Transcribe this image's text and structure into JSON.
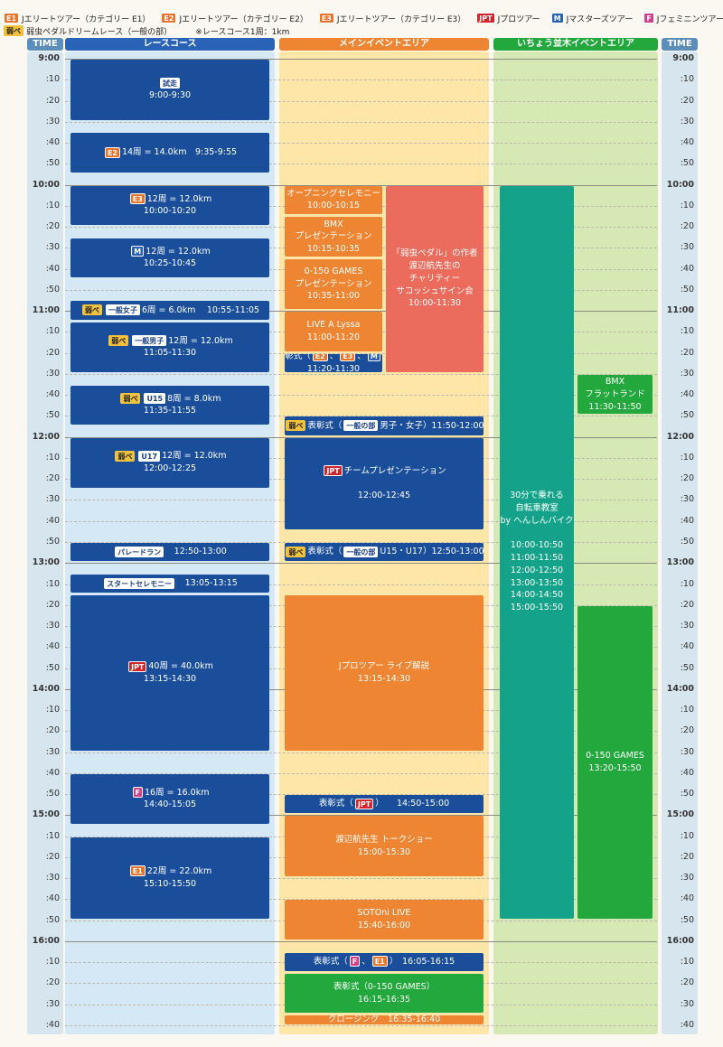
{
  "legend": {
    "row1": [
      {
        "badge": "E1",
        "cls": "e1",
        "text": "Jエリートツアー（カテゴリー E1）"
      },
      {
        "badge": "E2",
        "cls": "e2",
        "text": "Jエリートツアー（カテゴリー E2）"
      },
      {
        "badge": "E3",
        "cls": "e3",
        "text": "Jエリートツアー（カテゴリー E3）"
      },
      {
        "badge": "JPT",
        "cls": "jpt",
        "text": "Jプロツアー"
      },
      {
        "badge": "M",
        "cls": "m",
        "text": "Jマスターズツアー"
      },
      {
        "badge": "F",
        "cls": "f",
        "text": "Jフェミニンツアー"
      }
    ],
    "row2": [
      {
        "badge": "弱ペ",
        "cls": "yw",
        "text": "弱虫ペダルドリームレース（一般の部）"
      }
    ],
    "note": "※レースコース1周：1km"
  },
  "columns": {
    "time_label": "TIME",
    "race": "レースコース",
    "main": "メインイベントエリア",
    "ichou": "いちょう並木イベントエリア"
  },
  "ticks": [
    "9:00",
    ":10",
    ":20",
    ":30",
    ":40",
    ":50",
    "10:00",
    ":10",
    ":20",
    ":30",
    ":40",
    ":50",
    "11:00",
    ":10",
    ":20",
    ":30",
    ":40",
    ":50",
    "12:00",
    ":10",
    ":20",
    ":30",
    ":40",
    ":50",
    "13:00",
    ":10",
    ":20",
    ":30",
    ":40",
    ":50",
    "14:00",
    ":10",
    ":20",
    ":30",
    ":40",
    ":50",
    "15:00",
    ":10",
    ":20",
    ":30",
    ":40",
    ":50",
    "16:00",
    ":10",
    ":20",
    ":30",
    ":40"
  ],
  "colors": {
    "race_header": "#2a62b8",
    "main_header": "#ee8532",
    "ichou_header": "#22a83c",
    "time_header": "#5b8fba",
    "race_bg": "#d4e8f6",
    "main_bg": "#fde6a8",
    "ichou_bg": "#d6e8b3",
    "time_bg": "#d7e5ee"
  },
  "events": {
    "race": [
      {
        "id": "trial",
        "start": "9:00",
        "end": "9:30",
        "color": "blue",
        "lines": [
          [
            {
              "b": "試走",
              "c": "wb"
            }
          ],
          [
            {
              "t": "9:00-9:30"
            }
          ]
        ]
      },
      {
        "id": "e2",
        "start": "9:35",
        "end": "9:55",
        "color": "blue",
        "lines": [
          [
            {
              "b": "E2",
              "c": "e2"
            },
            {
              "t": "14周 = 14.0km　9:35-9:55"
            }
          ]
        ]
      },
      {
        "id": "e3",
        "start": "10:00",
        "end": "10:20",
        "color": "blue",
        "lines": [
          [
            {
              "b": "E3",
              "c": "e3"
            },
            {
              "t": "12周 = 12.0km"
            }
          ],
          [
            {
              "t": "10:00-10:20"
            }
          ]
        ]
      },
      {
        "id": "m",
        "start": "10:25",
        "end": "10:45",
        "color": "blue",
        "lines": [
          [
            {
              "b": "M",
              "c": "m"
            },
            {
              "t": "12周 = 12.0km"
            }
          ],
          [
            {
              "t": "10:25-10:45"
            }
          ]
        ]
      },
      {
        "id": "women",
        "start": "10:55",
        "end": "11:05",
        "color": "blue",
        "lines": [
          [
            {
              "b": "弱ペ",
              "c": "yw"
            },
            {
              "b": "一般女子",
              "c": "wb"
            },
            {
              "t": "6周 = 6.0km　 10:55-11:05"
            }
          ]
        ]
      },
      {
        "id": "men",
        "start": "11:05",
        "end": "11:30",
        "color": "blue",
        "lines": [
          [
            {
              "b": "弱ペ",
              "c": "yw"
            },
            {
              "b": "一般男子",
              "c": "wb"
            },
            {
              "t": "12周 = 12.0km"
            }
          ],
          [
            {
              "t": "11:05-11:30"
            }
          ]
        ]
      },
      {
        "id": "u15",
        "start": "11:35",
        "end": "11:55",
        "color": "blue",
        "lines": [
          [
            {
              "b": "弱ペ",
              "c": "yw"
            },
            {
              "b": "U15",
              "c": "wb"
            },
            {
              "t": "8周 = 8.0km"
            }
          ],
          [
            {
              "t": "11:35-11:55"
            }
          ]
        ]
      },
      {
        "id": "u17",
        "start": "12:00",
        "end": "12:25",
        "color": "blue",
        "lines": [
          [
            {
              "b": "弱ペ",
              "c": "yw"
            },
            {
              "b": "U17",
              "c": "wb"
            },
            {
              "t": "12周 = 12.0km"
            }
          ],
          [
            {
              "t": "12:00-12:25"
            }
          ]
        ]
      },
      {
        "id": "parade",
        "start": "12:50",
        "end": "13:00",
        "color": "blue",
        "lines": [
          [
            {
              "b": "パレードラン",
              "c": "wb"
            },
            {
              "t": "　12:50-13:00"
            }
          ]
        ]
      },
      {
        "id": "startcere",
        "start": "13:05",
        "end": "13:15",
        "color": "blue",
        "lines": [
          [
            {
              "b": "スタートセレモニー",
              "c": "wb"
            },
            {
              "t": "　13:05-13:15"
            }
          ]
        ]
      },
      {
        "id": "jpt",
        "start": "13:15",
        "end": "14:30",
        "color": "blue",
        "lines": [
          [
            {
              "b": "JPT",
              "c": "jpt"
            },
            {
              "t": "40周 = 40.0km"
            }
          ],
          [
            {
              "t": "13:15-14:30"
            }
          ]
        ]
      },
      {
        "id": "f",
        "start": "14:40",
        "end": "15:05",
        "color": "blue",
        "lines": [
          [
            {
              "b": "F",
              "c": "f"
            },
            {
              "t": "16周 = 16.0km"
            }
          ],
          [
            {
              "t": "14:40-15:05"
            }
          ]
        ]
      },
      {
        "id": "e1",
        "start": "15:10",
        "end": "15:50",
        "color": "blue",
        "lines": [
          [
            {
              "b": "E1",
              "c": "e1"
            },
            {
              "t": "22周 = 22.0km"
            }
          ],
          [
            {
              "t": "15:10-15:50"
            }
          ]
        ]
      }
    ],
    "main": [
      {
        "id": "opening",
        "start": "10:00",
        "end": "10:15",
        "col": "left",
        "color": "orange",
        "lines": [
          [
            {
              "t": "オープニングセレモニー"
            }
          ],
          [
            {
              "t": "10:00-10:15"
            }
          ]
        ]
      },
      {
        "id": "bmx_pres",
        "start": "10:15",
        "end": "10:35",
        "col": "left",
        "color": "orange",
        "lines": [
          [
            {
              "t": "BMX"
            }
          ],
          [
            {
              "t": "プレゼンテーション"
            }
          ],
          [
            {
              "t": "10:15-10:35"
            }
          ]
        ]
      },
      {
        "id": "games_pres",
        "start": "10:35",
        "end": "11:00",
        "col": "left",
        "color": "orange",
        "lines": [
          [
            {
              "t": "0-150 GAMES"
            }
          ],
          [
            {
              "t": "プレゼンテーション"
            }
          ],
          [
            {
              "t": "10:35-11:00"
            }
          ]
        ]
      },
      {
        "id": "lyssa",
        "start": "11:00",
        "end": "11:20",
        "col": "left",
        "color": "orange",
        "lines": [
          [
            {
              "t": "LIVE A Lyssa"
            }
          ],
          [
            {
              "t": "11:00-11:20"
            }
          ]
        ]
      },
      {
        "id": "award1",
        "start": "11:20",
        "end": "11:30",
        "col": "left",
        "color": "blue",
        "lines": [
          [
            {
              "t": "表彰式（"
            },
            {
              "b": "E2",
              "c": "e2"
            },
            {
              "t": "、"
            },
            {
              "b": "E3",
              "c": "e3"
            },
            {
              "t": "、"
            },
            {
              "b": "M",
              "c": "m"
            },
            {
              "t": "）"
            }
          ],
          [
            {
              "t": "11:20-11:30"
            }
          ]
        ]
      },
      {
        "id": "charity",
        "start": "10:00",
        "end": "11:30",
        "col": "right",
        "color": "salmon",
        "lines": [
          [
            {
              "t": "「弱虫ペダル」の作者"
            }
          ],
          [
            {
              "t": "渡辺航先生の"
            }
          ],
          [
            {
              "t": "チャリティー"
            }
          ],
          [
            {
              "t": "サコッシュサイン会"
            }
          ],
          [
            {
              "t": "10:00-11:30"
            }
          ]
        ]
      },
      {
        "id": "award2",
        "start": "11:50",
        "end": "12:00",
        "col": "full",
        "color": "blue",
        "lines": [
          [
            {
              "b": "弱ペ",
              "c": "yw"
            },
            {
              "t": "表彰式（"
            },
            {
              "b": "一般の部",
              "c": "wb"
            },
            {
              "t": "男子・女子）11:50-12:00"
            }
          ]
        ]
      },
      {
        "id": "team_pres",
        "start": "12:00",
        "end": "12:45",
        "col": "full",
        "color": "blue",
        "lines": [
          [
            {
              "b": "JPT",
              "c": "jpt"
            },
            {
              "t": "チームプレゼンテーション"
            }
          ],
          [
            {
              "t": "　"
            }
          ],
          [
            {
              "t": "12:00-12:45"
            }
          ]
        ]
      },
      {
        "id": "award3",
        "start": "12:50",
        "end": "13:00",
        "col": "full",
        "color": "blue",
        "lines": [
          [
            {
              "b": "弱ペ",
              "c": "yw"
            },
            {
              "t": "表彰式（"
            },
            {
              "b": "一般の部",
              "c": "wb"
            },
            {
              "t": "U15・U17）12:50-13:00"
            }
          ]
        ]
      },
      {
        "id": "live_comm",
        "start": "13:15",
        "end": "14:30",
        "col": "full",
        "color": "orange",
        "lines": [
          [
            {
              "t": "Jプロツアー ライブ解説"
            }
          ],
          [
            {
              "t": "13:15-14:30"
            }
          ]
        ]
      },
      {
        "id": "award_jpt",
        "start": "14:50",
        "end": "15:00",
        "col": "full",
        "color": "blue",
        "lines": [
          [
            {
              "t": "表彰式（"
            },
            {
              "b": "JPT",
              "c": "jpt"
            },
            {
              "t": "）　　14:50-15:00"
            }
          ]
        ]
      },
      {
        "id": "talk",
        "start": "15:00",
        "end": "15:30",
        "col": "full",
        "color": "orange",
        "lines": [
          [
            {
              "t": "渡辺航先生 トークショー"
            }
          ],
          [
            {
              "t": "15:00-15:30"
            }
          ]
        ]
      },
      {
        "id": "sotoni",
        "start": "15:40",
        "end": "16:00",
        "col": "full",
        "color": "orange",
        "lines": [
          [
            {
              "t": "SOTOni LIVE"
            }
          ],
          [
            {
              "t": "15:40-16:00"
            }
          ]
        ]
      },
      {
        "id": "award_fe1",
        "start": "16:05",
        "end": "16:15",
        "col": "full",
        "color": "blue",
        "lines": [
          [
            {
              "t": "表彰式（"
            },
            {
              "b": "F",
              "c": "f"
            },
            {
              "t": "、"
            },
            {
              "b": "E1",
              "c": "e1"
            },
            {
              "t": "）　16:05-16:15"
            }
          ]
        ]
      },
      {
        "id": "award_games",
        "start": "16:15",
        "end": "16:35",
        "col": "full",
        "color": "green",
        "lines": [
          [
            {
              "t": "表彰式（0-150 GAMES）"
            }
          ],
          [
            {
              "t": "16:15-16:35"
            }
          ]
        ]
      },
      {
        "id": "closing",
        "start": "16:35",
        "end": "16:40",
        "col": "full",
        "color": "orange",
        "lines": [
          [
            {
              "t": "クロージング　16:35-16:40"
            }
          ]
        ]
      }
    ],
    "ichou": [
      {
        "id": "bike_school",
        "start": "10:00",
        "end": "15:50",
        "col": "left",
        "color": "teal",
        "lines": [
          [
            {
              "t": "30分で乗れる"
            }
          ],
          [
            {
              "t": "自転車教室"
            }
          ],
          [
            {
              "t": "by へんしんバイク"
            }
          ],
          [
            {
              "t": "　"
            }
          ],
          [
            {
              "t": "10:00-10:50"
            }
          ],
          [
            {
              "t": "11:00-11:50"
            }
          ],
          [
            {
              "t": "12:00-12:50"
            }
          ],
          [
            {
              "t": "13:00-13:50"
            }
          ],
          [
            {
              "t": "14:00-14:50"
            }
          ],
          [
            {
              "t": "15:00-15:50"
            }
          ]
        ]
      },
      {
        "id": "bmx_flat",
        "start": "11:30",
        "end": "11:50",
        "col": "right",
        "color": "green",
        "lines": [
          [
            {
              "t": "BMX"
            }
          ],
          [
            {
              "t": "フラットランド"
            }
          ],
          [
            {
              "t": "11:30-11:50"
            }
          ]
        ]
      },
      {
        "id": "games",
        "start": "13:20",
        "end": "15:50",
        "col": "right",
        "color": "green",
        "lines": [
          [
            {
              "t": "0-150 GAMES"
            }
          ],
          [
            {
              "t": "13:20-15:50"
            }
          ]
        ]
      }
    ]
  }
}
